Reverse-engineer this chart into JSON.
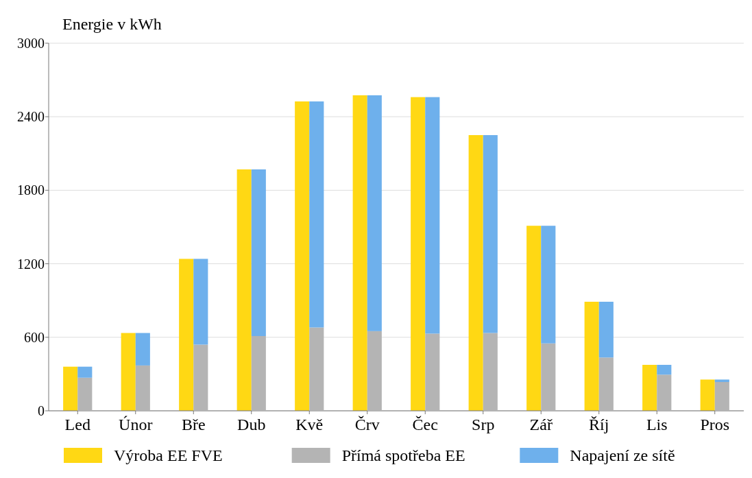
{
  "chart_data": [
    {
      "type": "bar",
      "ylabel": "Energie v kWh",
      "categories": [
        "Led",
        "Únor",
        "Bře",
        "Dub",
        "Kvě",
        "Črv",
        "Čec",
        "Srp",
        "Zář",
        "Říj",
        "Lis",
        "Pros"
      ],
      "series": [
        {
          "name": "Výroba EE FVE",
          "color": "#ffd814",
          "values": [
            360,
            635,
            1240,
            1970,
            2525,
            2575,
            2560,
            2250,
            1510,
            890,
            375,
            255
          ]
        }
      ],
      "ylim": [
        0,
        3000
      ],
      "yticks": [
        0,
        600,
        1200,
        1800,
        2400,
        3000
      ],
      "grid": "y",
      "legend": "bottom"
    },
    {
      "type": "bar",
      "categories": [
        null,
        null,
        null,
        null,
        null,
        null,
        null,
        null,
        null,
        null,
        null,
        null
      ],
      "series": [
        {
          "name": "Přímá spotřeba EE",
          "color": "#b4b4b4",
          "values": [
            270,
            370,
            540,
            610,
            680,
            650,
            630,
            635,
            550,
            435,
            295,
            235
          ]
        },
        {
          "name": "Napajení ze sítě",
          "color": "#6eb0ec",
          "values": [
            90,
            265,
            700,
            1360,
            1845,
            1925,
            1930,
            1615,
            960,
            455,
            80,
            20
          ]
        }
      ],
      "stacked": true,
      "ylim": [
        0,
        3000
      ],
      "tick_labels": false,
      "legend": "bottom"
    }
  ]
}
